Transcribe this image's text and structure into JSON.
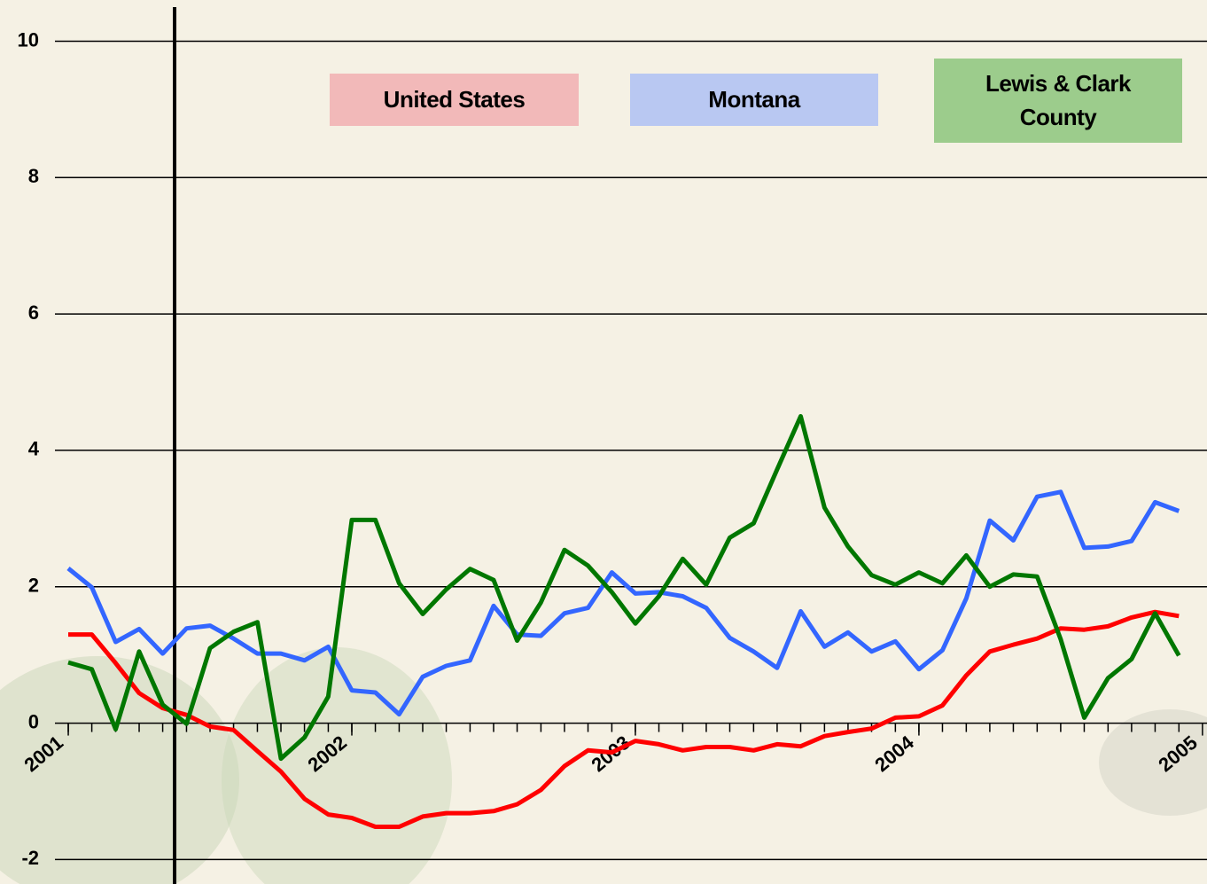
{
  "chart_data": {
    "type": "line",
    "x": [
      2001,
      2001.083,
      2001.167,
      2001.25,
      2001.333,
      2001.417,
      2001.5,
      2001.583,
      2001.667,
      2001.75,
      2001.833,
      2001.917,
      2002,
      2002.083,
      2002.167,
      2002.25,
      2002.333,
      2002.417,
      2002.5,
      2002.583,
      2002.667,
      2002.75,
      2002.833,
      2002.917,
      2003,
      2003.083,
      2003.167,
      2003.25,
      2003.333,
      2003.417,
      2003.5,
      2003.583,
      2003.667,
      2003.75,
      2003.833,
      2003.917,
      2004,
      2004.083,
      2004.167,
      2004.25,
      2004.333,
      2004.417,
      2004.5,
      2004.583,
      2004.667,
      2004.75,
      2004.833,
      2004.917
    ],
    "series": [
      {
        "name": "United States",
        "color": "#ff0000",
        "values": [
          1.3,
          1.3,
          0.88,
          0.44,
          0.22,
          0.12,
          -0.05,
          -0.1,
          -0.41,
          -0.71,
          -1.11,
          -1.34,
          -1.39,
          -1.52,
          -1.52,
          -1.37,
          -1.32,
          -1.32,
          -1.29,
          -1.19,
          -0.98,
          -0.63,
          -0.4,
          -0.43,
          -0.26,
          -0.31,
          -0.4,
          -0.35,
          -0.35,
          -0.4,
          -0.31,
          -0.34,
          -0.19,
          -0.13,
          -0.08,
          0.08,
          0.1,
          0.26,
          0.7,
          1.05,
          1.15,
          1.24,
          1.39,
          1.37,
          1.42,
          1.55,
          1.63,
          1.57
        ]
      },
      {
        "name": "Montana",
        "color": "#3366ff",
        "values": [
          2.27,
          1.99,
          1.19,
          1.38,
          1.02,
          1.39,
          1.43,
          1.24,
          1.02,
          1.02,
          0.92,
          1.12,
          0.48,
          0.45,
          0.13,
          0.68,
          0.84,
          0.92,
          1.72,
          1.3,
          1.28,
          1.61,
          1.69,
          2.21,
          1.9,
          1.92,
          1.86,
          1.69,
          1.25,
          1.05,
          0.81,
          1.64,
          1.12,
          1.33,
          1.05,
          1.2,
          0.79,
          1.07,
          1.83,
          2.97,
          2.68,
          3.32,
          3.39,
          2.57,
          2.59,
          2.67,
          3.24,
          3.11
        ]
      },
      {
        "name": "Lewis & Clark County",
        "color": "#007700",
        "values": [
          0.89,
          0.79,
          -0.09,
          1.05,
          0.27,
          -0.01,
          1.1,
          1.34,
          1.48,
          -0.52,
          -0.21,
          0.39,
          2.98,
          2.98,
          2.05,
          1.6,
          1.96,
          2.26,
          2.1,
          1.21,
          1.77,
          2.54,
          2.31,
          1.92,
          1.46,
          1.86,
          2.41,
          2.03,
          2.72,
          2.93,
          3.72,
          4.5,
          3.16,
          2.59,
          2.17,
          2.03,
          2.21,
          2.05,
          2.46,
          2.0,
          2.18,
          2.15,
          1.23,
          0.08,
          0.66,
          0.94,
          1.61,
          0.99
        ]
      }
    ],
    "xlim": [
      2000.953,
      2005.016
    ],
    "xticks": [
      2001,
      2002,
      2003,
      2004,
      2005
    ],
    "ylim": [
      -2.32,
      10.5
    ],
    "yticks": [
      -2,
      0,
      2,
      4,
      6,
      8,
      10
    ],
    "grid": true
  }
}
